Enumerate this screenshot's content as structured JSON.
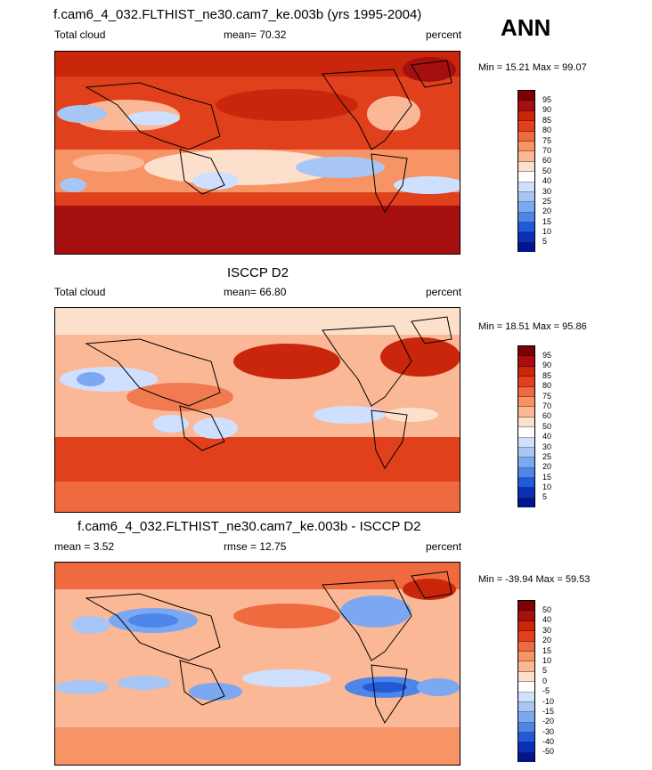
{
  "header": {
    "corner_label": "ANN"
  },
  "panels": [
    {
      "title": "f.cam6_4_032.FLTHIST_ne30.cam7_ke.003b (yrs 1995-2004)",
      "left_label": "Total cloud",
      "center_label": "mean=  70.32",
      "units": "percent",
      "minmax": "Min =  15.21 Max =  99.07",
      "levels": [
        "95",
        "90",
        "85",
        "80",
        "75",
        "70",
        "60",
        "50",
        "40",
        "30",
        "25",
        "20",
        "15",
        "10",
        "5"
      ],
      "colors": [
        "#7f0000",
        "#a60f0f",
        "#c9260c",
        "#e0401c",
        "#ef6a3f",
        "#f79465",
        "#fbb896",
        "#fde0cc",
        "#ffffff",
        "#cfe0ff",
        "#a8c6f5",
        "#7ba8f0",
        "#4d86e8",
        "#2359d6",
        "#0b2fb5",
        "#00168c"
      ]
    },
    {
      "title": "ISCCP D2",
      "left_label": "Total cloud",
      "center_label": "mean=  66.80",
      "units": "percent",
      "minmax": "Min =  18.51 Max =  95.86",
      "levels": [
        "95",
        "90",
        "85",
        "80",
        "75",
        "70",
        "60",
        "50",
        "40",
        "30",
        "25",
        "20",
        "15",
        "10",
        "5"
      ],
      "colors": [
        "#7f0000",
        "#a60f0f",
        "#c9260c",
        "#e0401c",
        "#ef6a3f",
        "#f79465",
        "#fbb896",
        "#fde0cc",
        "#ffffff",
        "#cfe0ff",
        "#a8c6f5",
        "#7ba8f0",
        "#4d86e8",
        "#2359d6",
        "#0b2fb5",
        "#00168c"
      ]
    },
    {
      "title": "f.cam6_4_032.FLTHIST_ne30.cam7_ke.003b - ISCCP D2",
      "left_label": "mean =   3.52",
      "center_label": "rmse =  12.75",
      "units": "percent",
      "minmax": "Min = -39.94 Max =  59.53",
      "levels": [
        "50",
        "40",
        "30",
        "20",
        "15",
        "10",
        "5",
        "0",
        "-5",
        "-10",
        "-15",
        "-20",
        "-30",
        "-40",
        "-50"
      ],
      "colors": [
        "#7f0000",
        "#a60f0f",
        "#c9260c",
        "#e0401c",
        "#ef6a3f",
        "#f79465",
        "#fbb896",
        "#fde0cc",
        "#ffffff",
        "#cfe0ff",
        "#a8c6f5",
        "#7ba8f0",
        "#4d86e8",
        "#2359d6",
        "#0b2fb5",
        "#00168c"
      ]
    }
  ]
}
